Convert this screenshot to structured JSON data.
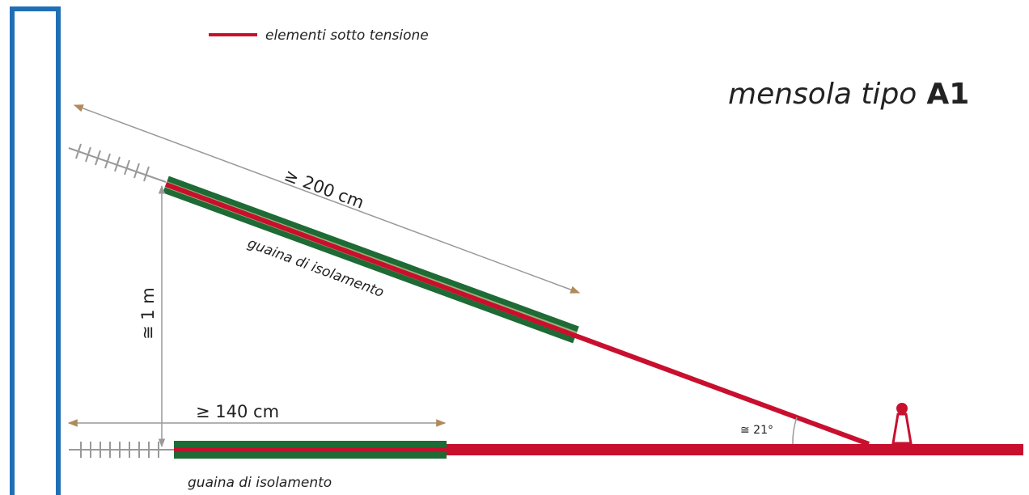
{
  "legend": {
    "label": "elementi sotto tensione"
  },
  "title": {
    "text": "mensola tipo",
    "code": "A1"
  },
  "upper_arm": {
    "length_label": "≥ 200 cm",
    "sheath_label": "guaina di isolamento"
  },
  "height_label": "≅ 1 m",
  "lower_arm": {
    "length_label": "≥ 140 cm",
    "sheath_label": "guaina di isolamento"
  },
  "angle_label": "≅ 21°"
}
